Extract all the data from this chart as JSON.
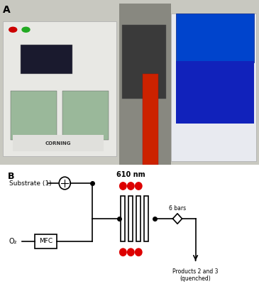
{
  "panel_A_label": "A",
  "panel_B_label": "B",
  "substrate_label": "Substrate (1)",
  "o2_label": "O₂",
  "mfc_label": "MFC",
  "wavelength_label": "610 nm",
  "bars_label": "6 bars",
  "products_label": "Products 2 and 3\n(quenched)",
  "red_dot_color": "#DD0000",
  "line_color": "#000000",
  "bg_color": "#ffffff",
  "bold_items": [
    "610 nm",
    "2",
    "3"
  ]
}
